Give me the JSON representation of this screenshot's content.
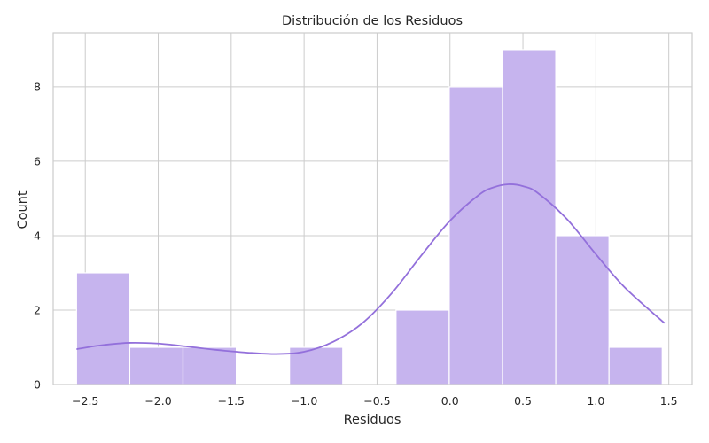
{
  "chart_data": {
    "type": "bar",
    "subtype": "histogram",
    "title": "Distribución de los Residuos",
    "xlabel": "Residuos",
    "ylabel": "Count",
    "xlim": [
      -2.72,
      1.66
    ],
    "ylim": [
      0,
      9.45
    ],
    "x_ticks": [
      {
        "value": -2.5,
        "label": "−2.5"
      },
      {
        "value": -2.0,
        "label": "−2.0"
      },
      {
        "value": -1.5,
        "label": "−1.5"
      },
      {
        "value": -1.0,
        "label": "−1.0"
      },
      {
        "value": -0.5,
        "label": "−0.5"
      },
      {
        "value": 0.0,
        "label": "0.0"
      },
      {
        "value": 0.5,
        "label": "0.5"
      },
      {
        "value": 1.0,
        "label": "1.0"
      },
      {
        "value": 1.5,
        "label": "1.5"
      }
    ],
    "y_ticks": [
      {
        "value": 0,
        "label": "0"
      },
      {
        "value": 2,
        "label": "2"
      },
      {
        "value": 4,
        "label": "4"
      },
      {
        "value": 6,
        "label": "6"
      },
      {
        "value": 8,
        "label": "8"
      }
    ],
    "bins": [
      {
        "start": -2.56,
        "end": -2.195,
        "count": 3
      },
      {
        "start": -2.195,
        "end": -1.83,
        "count": 1
      },
      {
        "start": -1.83,
        "end": -1.465,
        "count": 1
      },
      {
        "start": -1.465,
        "end": -1.1,
        "count": 0
      },
      {
        "start": -1.1,
        "end": -0.735,
        "count": 1
      },
      {
        "start": -0.735,
        "end": -0.37,
        "count": 0
      },
      {
        "start": -0.37,
        "end": -0.005,
        "count": 2
      },
      {
        "start": -0.005,
        "end": 0.36,
        "count": 8
      },
      {
        "start": 0.36,
        "end": 0.725,
        "count": 9
      },
      {
        "start": 0.725,
        "end": 1.09,
        "count": 4
      },
      {
        "start": 1.09,
        "end": 1.455,
        "count": 1
      }
    ],
    "kde": {
      "x": [
        -2.56,
        -2.4,
        -2.2,
        -2.0,
        -1.8,
        -1.6,
        -1.4,
        -1.2,
        -1.0,
        -0.8,
        -0.6,
        -0.4,
        -0.2,
        0.0,
        0.2,
        0.3,
        0.4,
        0.5,
        0.6,
        0.8,
        1.0,
        1.2,
        1.47
      ],
      "y": [
        0.95,
        1.05,
        1.12,
        1.1,
        1.02,
        0.93,
        0.86,
        0.82,
        0.88,
        1.15,
        1.65,
        2.45,
        3.45,
        4.4,
        5.1,
        5.3,
        5.38,
        5.33,
        5.15,
        4.45,
        3.5,
        2.6,
        1.65
      ]
    },
    "grid": true,
    "colors": {
      "bar_fill": "#c6b4ee",
      "bar_stroke": "#ffffff",
      "kde_line": "#9370db",
      "grid": "#cccccc",
      "axes_edge": "#cccccc",
      "text": "#262626"
    }
  }
}
